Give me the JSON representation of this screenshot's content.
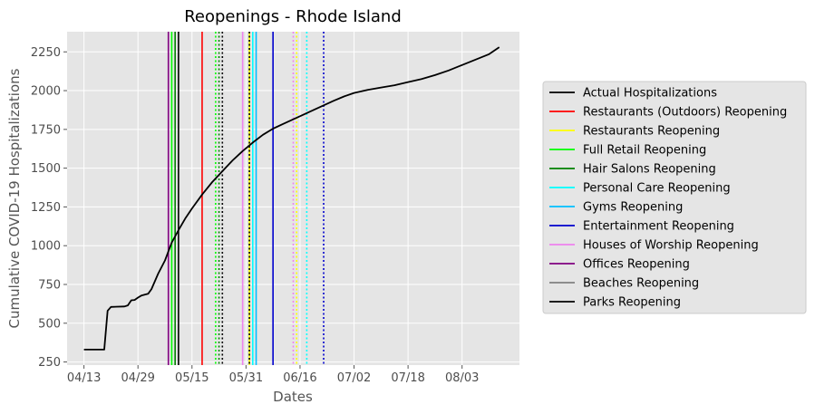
{
  "chart_data": {
    "type": "line",
    "title": "Reopenings - Rhode Island",
    "xlabel": "Dates",
    "ylabel": "Cumulative COVID-19 Hospitalizations",
    "x_tick_labels": [
      "04/13",
      "04/29",
      "05/15",
      "05/31",
      "06/16",
      "07/02",
      "07/18",
      "08/03"
    ],
    "x_tick_dates": [
      "2020-04-13",
      "2020-04-29",
      "2020-05-15",
      "2020-05-31",
      "2020-06-16",
      "2020-07-02",
      "2020-07-18",
      "2020-08-03"
    ],
    "xlim": [
      "2020-04-08",
      "2020-08-20"
    ],
    "yticks": [
      250,
      500,
      750,
      1000,
      1250,
      1500,
      1750,
      2000,
      2250
    ],
    "ylim": [
      230,
      2380
    ],
    "grid": true,
    "legend_position": "center-right outside plot",
    "series": [
      {
        "name": "Actual Hospitalizations",
        "color": "#000000",
        "points": [
          [
            "2020-04-13",
            330
          ],
          [
            "2020-04-19",
            330
          ],
          [
            "2020-04-20",
            580
          ],
          [
            "2020-04-21",
            605
          ],
          [
            "2020-04-25",
            608
          ],
          [
            "2020-04-26",
            615
          ],
          [
            "2020-04-27",
            648
          ],
          [
            "2020-04-28",
            650
          ],
          [
            "2020-04-29",
            665
          ],
          [
            "2020-04-30",
            678
          ],
          [
            "2020-05-02",
            690
          ],
          [
            "2020-05-03",
            720
          ],
          [
            "2020-05-05",
            820
          ],
          [
            "2020-05-07",
            905
          ],
          [
            "2020-05-09",
            1020
          ],
          [
            "2020-05-11",
            1100
          ],
          [
            "2020-05-13",
            1175
          ],
          [
            "2020-05-15",
            1240
          ],
          [
            "2020-05-18",
            1330
          ],
          [
            "2020-05-21",
            1410
          ],
          [
            "2020-05-24",
            1480
          ],
          [
            "2020-05-27",
            1550
          ],
          [
            "2020-05-30",
            1610
          ],
          [
            "2020-06-02",
            1665
          ],
          [
            "2020-06-05",
            1715
          ],
          [
            "2020-06-08",
            1755
          ],
          [
            "2020-06-11",
            1785
          ],
          [
            "2020-06-14",
            1815
          ],
          [
            "2020-06-17",
            1845
          ],
          [
            "2020-06-20",
            1875
          ],
          [
            "2020-06-23",
            1905
          ],
          [
            "2020-06-26",
            1935
          ],
          [
            "2020-06-29",
            1962
          ],
          [
            "2020-07-02",
            1985
          ],
          [
            "2020-07-06",
            2005
          ],
          [
            "2020-07-10",
            2020
          ],
          [
            "2020-07-14",
            2035
          ],
          [
            "2020-07-18",
            2055
          ],
          [
            "2020-07-22",
            2075
          ],
          [
            "2020-07-26",
            2100
          ],
          [
            "2020-07-30",
            2130
          ],
          [
            "2020-08-03",
            2165
          ],
          [
            "2020-08-07",
            2200
          ],
          [
            "2020-08-11",
            2235
          ],
          [
            "2020-08-14",
            2280
          ]
        ]
      }
    ],
    "reopening_lines": [
      {
        "name": "Restaurants (Outdoors) Reopening",
        "color": "#ff0000",
        "dates": [
          "2020-05-18"
        ],
        "dates_dotted": []
      },
      {
        "name": "Restaurants Reopening",
        "color": "#ffff00",
        "dates": [
          "2020-06-01"
        ],
        "dates_dotted": [
          "2020-06-15"
        ]
      },
      {
        "name": "Full Retail Reopening",
        "color": "#00ff00",
        "dates": [
          "2020-05-09"
        ],
        "dates_dotted": [
          "2020-05-22"
        ]
      },
      {
        "name": "Hair Salons Reopening",
        "color": "#008000",
        "dates": [
          "2020-05-10"
        ],
        "dates_dotted": [
          "2020-05-23"
        ]
      },
      {
        "name": "Personal Care Reopening",
        "color": "#00ffff",
        "dates": [
          "2020-06-02"
        ],
        "dates_dotted": [
          "2020-06-18"
        ]
      },
      {
        "name": "Gyms Reopening",
        "color": "#00bfff",
        "dates": [
          "2020-06-03"
        ],
        "dates_dotted": []
      },
      {
        "name": "Entertainment Reopening",
        "color": "#0000cd",
        "dates": [
          "2020-06-08"
        ],
        "dates_dotted": [
          "2020-06-23"
        ]
      },
      {
        "name": "Houses of Worship Reopening",
        "color": "#ee82ee",
        "dates": [
          "2020-05-30"
        ],
        "dates_dotted": [
          "2020-06-14"
        ]
      },
      {
        "name": "Offices Reopening",
        "color": "#800080",
        "dates": [
          "2020-05-08"
        ],
        "dates_dotted": []
      },
      {
        "name": "Beaches Reopening",
        "color": "#808080",
        "dates": [],
        "dates_dotted": []
      },
      {
        "name": "Parks Reopening",
        "color": "#000000",
        "dates": [
          "2020-05-11"
        ],
        "dates_dotted": [
          "2020-05-24",
          "2020-06-01"
        ]
      }
    ]
  }
}
